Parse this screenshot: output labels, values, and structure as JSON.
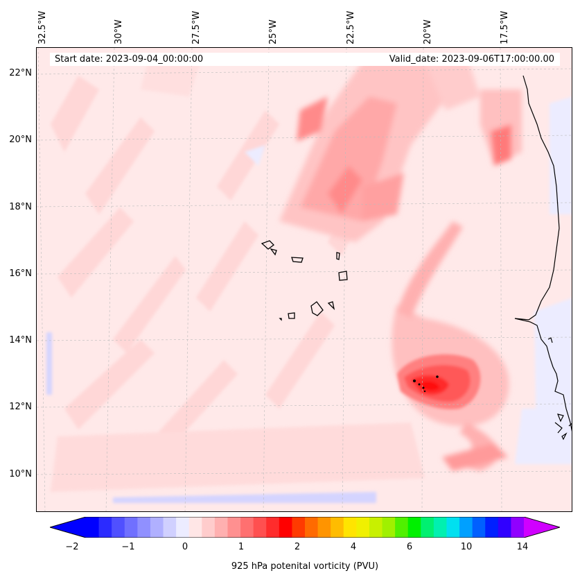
{
  "map": {
    "title_left": "Start date: 2023-09-04_00:00:00",
    "title_right": "Valid_date: 2023-09-06T17:00:00.00",
    "lon_labels": [
      "32.5°W",
      "30°W",
      "27.5°W",
      "25°W",
      "22.5°W",
      "20°W",
      "17.5°W"
    ],
    "lat_labels": [
      "22°N",
      "20°N",
      "18°N",
      "16°N",
      "14°N",
      "12°N",
      "10°N"
    ],
    "variable": "925 hPa potenital vorticity (PVU)"
  },
  "colorbar": {
    "label": "925 hPa potenital vorticity (PVU)",
    "tick_labels": [
      "−2",
      "−1",
      "0",
      "1",
      "2",
      "4",
      "6",
      "10",
      "14"
    ],
    "colors": [
      "#0000ff",
      "#2b2bff",
      "#5050ff",
      "#7070ff",
      "#9090ff",
      "#b0b0ff",
      "#d0d0ff",
      "#ececff",
      "#ffe6e6",
      "#ffcccc",
      "#ffb0b0",
      "#ff9090",
      "#ff7070",
      "#ff5050",
      "#ff2c2c",
      "#ff0000",
      "#ff3a00",
      "#ff6a00",
      "#ff9400",
      "#ffbc00",
      "#ffe400",
      "#f0f000",
      "#c8f000",
      "#a0f000",
      "#50f000",
      "#00f000",
      "#00f070",
      "#00f0b0",
      "#00e0f0",
      "#00a0ff",
      "#0060ff",
      "#0020ff",
      "#3000ff",
      "#9000ff"
    ],
    "under_color": "#0000ff",
    "over_color": "#d000ff"
  }
}
